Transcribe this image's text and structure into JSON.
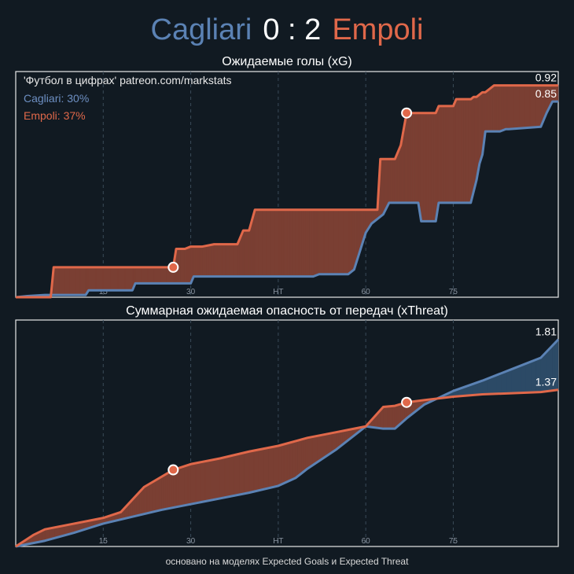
{
  "header": {
    "home_team": "Cagliari",
    "score": "0 : 2",
    "away_team": "Empoli"
  },
  "footer": "основано на моделях Expected Goals и Expected Threat",
  "colors": {
    "home": "#5b82b4",
    "away": "#e0684a",
    "background": "#111a22"
  },
  "chart_data": [
    {
      "type": "area",
      "title": "Ожидаемые голы (xG)",
      "xlim": [
        0,
        93
      ],
      "ylim": [
        0,
        0.98
      ],
      "grid": true,
      "x_ticks": [
        {
          "value": 15,
          "label": "15"
        },
        {
          "value": 30,
          "label": "30"
        },
        {
          "value": 45,
          "label": "HT"
        },
        {
          "value": 60,
          "label": "60"
        },
        {
          "value": 75,
          "label": "75"
        }
      ],
      "legend": {
        "position": "top-left",
        "source": "'Футбол в цифрах' patreon.com/markstats",
        "home": "Cagliari: 30%",
        "away": "Empoli: 37%"
      },
      "end_labels": {
        "away": "0.92",
        "home": "0.85"
      },
      "goals": [
        {
          "team": "away",
          "x": 27
        },
        {
          "team": "away",
          "x": 67
        }
      ],
      "series": [
        {
          "name": "Empoli",
          "color": "#e0684a",
          "x": [
            0,
            6,
            6.5,
            27,
            27.5,
            29,
            30,
            32,
            34,
            38,
            39,
            40,
            41,
            45,
            46,
            49,
            57,
            58,
            62,
            62.5,
            65,
            66,
            67,
            67.5,
            72,
            72.5,
            75,
            75.5,
            78,
            78.5,
            79,
            80,
            80.5,
            82,
            82.5,
            93
          ],
          "y": [
            0,
            0,
            0.13,
            0.13,
            0.21,
            0.21,
            0.22,
            0.22,
            0.23,
            0.23,
            0.29,
            0.29,
            0.38,
            0.38,
            0.38,
            0.38,
            0.38,
            0.38,
            0.38,
            0.6,
            0.6,
            0.66,
            0.8,
            0.8,
            0.8,
            0.83,
            0.83,
            0.86,
            0.86,
            0.87,
            0.87,
            0.89,
            0.89,
            0.92,
            0.92,
            0.92
          ]
        },
        {
          "name": "Cagliari",
          "color": "#5b82b4",
          "x": [
            0,
            2,
            5,
            6,
            12,
            12.5,
            20,
            20.5,
            30,
            30.5,
            51,
            52,
            57,
            58,
            59,
            60,
            61,
            62,
            63,
            64,
            69,
            69.5,
            72,
            72.5,
            78,
            79,
            79.5,
            80,
            80.5,
            83,
            84,
            84.5,
            90,
            91,
            92,
            93
          ],
          "y": [
            0,
            0.005,
            0.01,
            0.01,
            0.01,
            0.03,
            0.03,
            0.06,
            0.06,
            0.09,
            0.09,
            0.1,
            0.1,
            0.12,
            0.2,
            0.28,
            0.32,
            0.34,
            0.36,
            0.41,
            0.41,
            0.33,
            0.33,
            0.41,
            0.41,
            0.51,
            0.58,
            0.62,
            0.72,
            0.72,
            0.73,
            0.73,
            0.74,
            0.8,
            0.85,
            0.85
          ]
        }
      ]
    },
    {
      "type": "area",
      "title": "Суммарная ожидаемая опасность от передач (xThreat)",
      "xlim": [
        0,
        93
      ],
      "ylim": [
        0,
        1.98
      ],
      "grid": true,
      "x_ticks": [
        {
          "value": 15,
          "label": "15"
        },
        {
          "value": 30,
          "label": "30"
        },
        {
          "value": 45,
          "label": "HT"
        },
        {
          "value": 60,
          "label": "60"
        },
        {
          "value": 75,
          "label": "75"
        }
      ],
      "end_labels": {
        "home": "1.81",
        "away": "1.37"
      },
      "goals": [
        {
          "team": "away",
          "x": 27
        },
        {
          "team": "away",
          "x": 67
        }
      ],
      "series": [
        {
          "name": "Empoli",
          "color": "#e0684a",
          "x": [
            0,
            3,
            5,
            10,
            15,
            18,
            22,
            27,
            30,
            35,
            40,
            45,
            50,
            55,
            57,
            60,
            63,
            65,
            67,
            70,
            75,
            80,
            85,
            90,
            93
          ],
          "y": [
            0,
            0.1,
            0.15,
            0.2,
            0.25,
            0.3,
            0.52,
            0.67,
            0.72,
            0.77,
            0.83,
            0.88,
            0.95,
            1.0,
            1.02,
            1.05,
            1.22,
            1.23,
            1.26,
            1.28,
            1.31,
            1.33,
            1.34,
            1.35,
            1.37
          ]
        },
        {
          "name": "Cagliari",
          "color": "#5b82b4",
          "x": [
            0,
            5,
            10,
            15,
            20,
            25,
            30,
            35,
            40,
            45,
            48,
            50,
            55,
            58,
            60,
            63,
            65,
            67,
            70,
            75,
            80,
            85,
            90,
            93
          ],
          "y": [
            0,
            0.05,
            0.12,
            0.2,
            0.26,
            0.32,
            0.37,
            0.42,
            0.47,
            0.53,
            0.6,
            0.68,
            0.85,
            0.97,
            1.05,
            1.03,
            1.03,
            1.12,
            1.24,
            1.36,
            1.45,
            1.55,
            1.65,
            1.81
          ]
        }
      ]
    }
  ]
}
